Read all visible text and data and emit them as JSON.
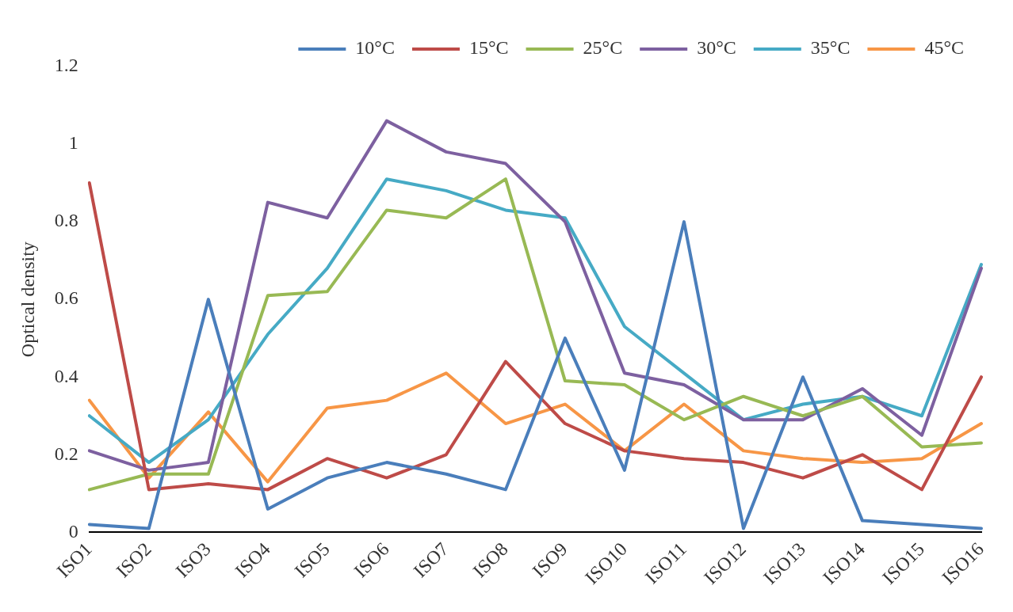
{
  "chart_data": {
    "type": "line",
    "ylabel": "Optical density",
    "categories": [
      "ISO1",
      "ISO2",
      "ISO3",
      "ISO4",
      "ISO5",
      "ISO6",
      "ISO7",
      "ISO8",
      "ISO9",
      "ISO10",
      "ISO11",
      "ISO12",
      "ISO13",
      "ISO14",
      "ISO15",
      "ISO16"
    ],
    "series": [
      {
        "name": "10°C",
        "color": "#4a7ebb",
        "values": [
          0.02,
          0.01,
          0.6,
          0.06,
          0.14,
          0.18,
          0.15,
          0.11,
          0.5,
          0.16,
          0.8,
          0.01,
          0.4,
          0.03,
          0.02,
          0.01
        ]
      },
      {
        "name": "15°C",
        "color": "#be4b48",
        "values": [
          0.9,
          0.11,
          0.125,
          0.11,
          0.19,
          0.14,
          0.2,
          0.44,
          0.28,
          0.21,
          0.19,
          0.18,
          0.14,
          0.2,
          0.11,
          0.4
        ]
      },
      {
        "name": "25°C",
        "color": "#98b954",
        "values": [
          0.11,
          0.15,
          0.15,
          0.61,
          0.62,
          0.83,
          0.81,
          0.91,
          0.39,
          0.38,
          0.29,
          0.35,
          0.3,
          0.35,
          0.22,
          0.23
        ]
      },
      {
        "name": "30°C",
        "color": "#7d60a0",
        "values": [
          0.21,
          0.16,
          0.18,
          0.85,
          0.81,
          1.06,
          0.98,
          0.95,
          0.8,
          0.41,
          0.38,
          0.29,
          0.29,
          0.37,
          0.25,
          0.68
        ]
      },
      {
        "name": "35°C",
        "color": "#46aac5",
        "values": [
          0.3,
          0.18,
          0.29,
          0.51,
          0.68,
          0.91,
          0.88,
          0.83,
          0.81,
          0.53,
          0.41,
          0.29,
          0.33,
          0.35,
          0.3,
          0.69
        ]
      },
      {
        "name": "45°C",
        "color": "#f79646",
        "values": [
          0.34,
          0.14,
          0.31,
          0.13,
          0.32,
          0.34,
          0.41,
          0.28,
          0.33,
          0.21,
          0.33,
          0.21,
          0.19,
          0.18,
          0.19,
          0.28
        ]
      }
    ],
    "ylim": [
      0,
      1.2
    ],
    "yticks": [
      0,
      0.2,
      0.4,
      0.6,
      0.8,
      1,
      1.2
    ],
    "grid": false,
    "legend": "top right",
    "marker": "none",
    "line_style": "solid"
  }
}
